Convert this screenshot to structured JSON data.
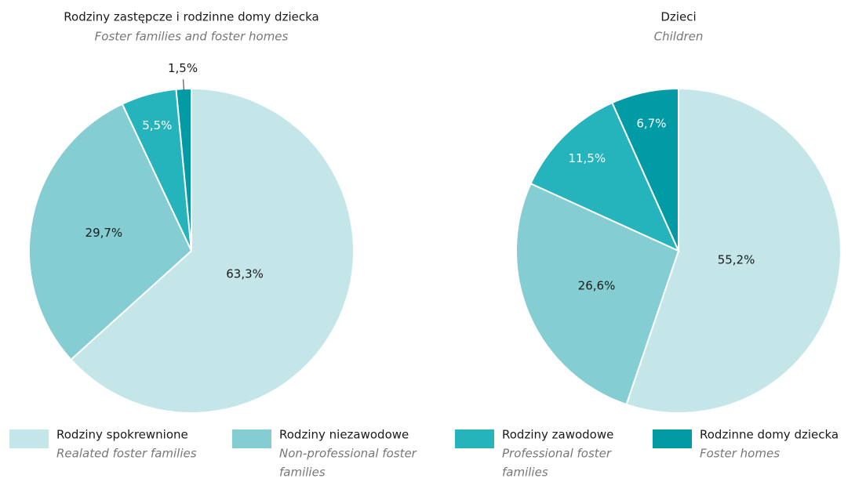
{
  "chart_data": [
    {
      "type": "pie",
      "title": "Rodziny zastępcze i rodzinne domy dziecka",
      "subtitle": "Foster families and foster homes",
      "values": [
        63.3,
        29.7,
        5.5,
        1.5
      ],
      "value_labels": [
        "63,3%",
        "29,7%",
        "5,5%",
        "1,5%"
      ],
      "colors": [
        "#c4e6e8",
        "#84cdd2",
        "#25b3bc",
        "#009ba4"
      ]
    },
    {
      "type": "pie",
      "title": "Dzieci",
      "subtitle": "Children",
      "values": [
        55.2,
        26.6,
        11.5,
        6.7
      ],
      "value_labels": [
        "55,2%",
        "26,6%",
        "11,5%",
        "6,7%"
      ],
      "colors": [
        "#c4e6e8",
        "#84cdd2",
        "#25b3bc",
        "#009ba4"
      ]
    }
  ],
  "legend": {
    "items": [
      {
        "label": "Rodziny spokrewnione",
        "sublabel": [
          "Realated foster families"
        ],
        "color": "#c4e6e8"
      },
      {
        "label": "Rodziny niezawodowe",
        "sublabel": [
          "Non-professional foster",
          "families"
        ],
        "color": "#84cdd2"
      },
      {
        "label": "Rodziny zawodowe",
        "sublabel": [
          "Professional foster",
          "families"
        ],
        "color": "#25b3bc"
      },
      {
        "label": "Rodzinne domy dziecka",
        "sublabel": [
          "Foster homes"
        ],
        "color": "#009ba4"
      }
    ]
  }
}
